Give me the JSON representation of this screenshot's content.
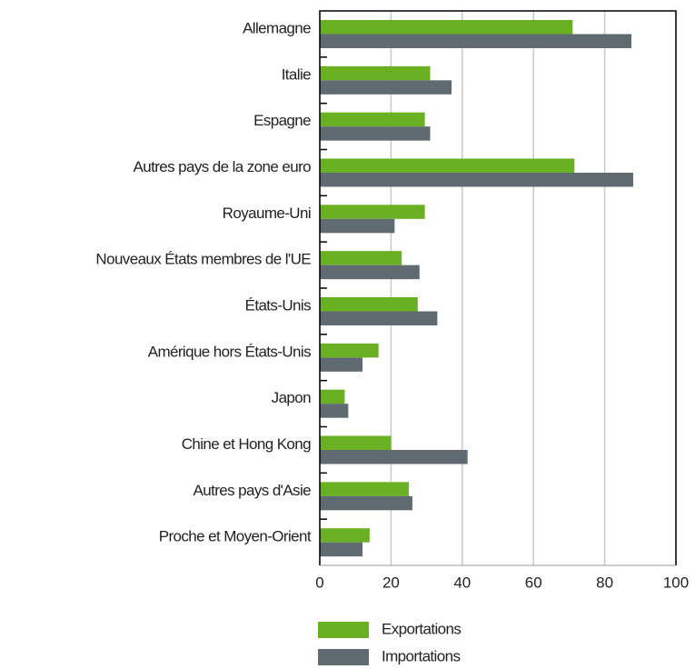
{
  "chart_data": {
    "type": "barh",
    "categories": [
      "Allemagne",
      "Italie",
      "Espagne",
      "Autres pays de la zone euro",
      "Royaume-Uni",
      "Nouveaux États membres de l'UE",
      "États-Unis",
      "Amérique hors États-Unis",
      "Japon",
      "Chine et Hong Kong",
      "Autres pays d'Asie",
      "Proche et Moyen-Orient"
    ],
    "series": [
      {
        "name": "Exportations",
        "color": "#6ab023",
        "values": [
          71,
          31,
          29.5,
          71.5,
          29.5,
          23,
          27.5,
          16.5,
          7,
          20,
          25,
          14
        ]
      },
      {
        "name": "Importations",
        "color": "#5f6b70",
        "values": [
          87.5,
          37,
          31,
          88,
          21,
          28,
          33,
          12,
          8,
          41.5,
          26,
          12
        ]
      }
    ],
    "xlim": [
      0,
      100
    ],
    "xticks": [
      0,
      20,
      40,
      60,
      80,
      100
    ],
    "grid": true,
    "legend": "bottom"
  }
}
